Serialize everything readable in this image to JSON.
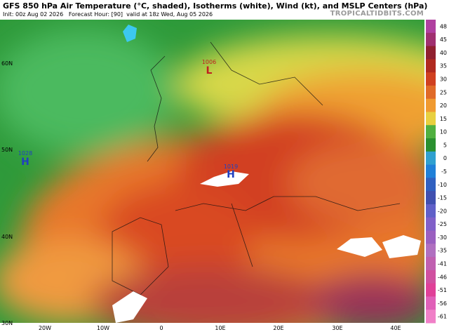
{
  "header": {
    "title": "GFS 850 hPa Air Temperature (°C, shaded), Isotherms (white), Wind (kt), and MSLP Centers (hPa)",
    "init": "Init: 00z Aug 02 2026",
    "forecast_hour": "Forecast Hour: [90]",
    "valid": "valid at 18z Wed, Aug 05 2026",
    "watermark": "TROPICALTIDBITS.COM"
  },
  "latitudes": [
    "60N",
    "50N",
    "40N",
    "30N"
  ],
  "longitudes": [
    "20W",
    "10W",
    "0",
    "10E",
    "20E",
    "30E",
    "40E"
  ],
  "centers": [
    {
      "letter": "L",
      "value": "1006"
    },
    {
      "letter": "H",
      "value": "1028"
    },
    {
      "letter": "H",
      "value": "1019"
    }
  ],
  "colorbar": {
    "labels": [
      "48",
      "45",
      "40",
      "35",
      "30",
      "25",
      "20",
      "15",
      "10",
      "5",
      "0",
      "-5",
      "-10",
      "-15",
      "-20",
      "-25",
      "-30",
      "-35",
      "-41",
      "-46",
      "-51",
      "-56",
      "-61"
    ],
    "colors": [
      "#b040a0",
      "#a03070",
      "#902030",
      "#b02a20",
      "#d04020",
      "#e06a28",
      "#f09a30",
      "#e8d040",
      "#50b040",
      "#2a9030",
      "#30a0d0",
      "#2080d8",
      "#3060c0",
      "#4050b0",
      "#6060c8",
      "#8060c8",
      "#9a60c0",
      "#b070c0",
      "#c060b0",
      "#d050a0",
      "#e04098",
      "#e060b8",
      "#f080c8"
    ]
  }
}
